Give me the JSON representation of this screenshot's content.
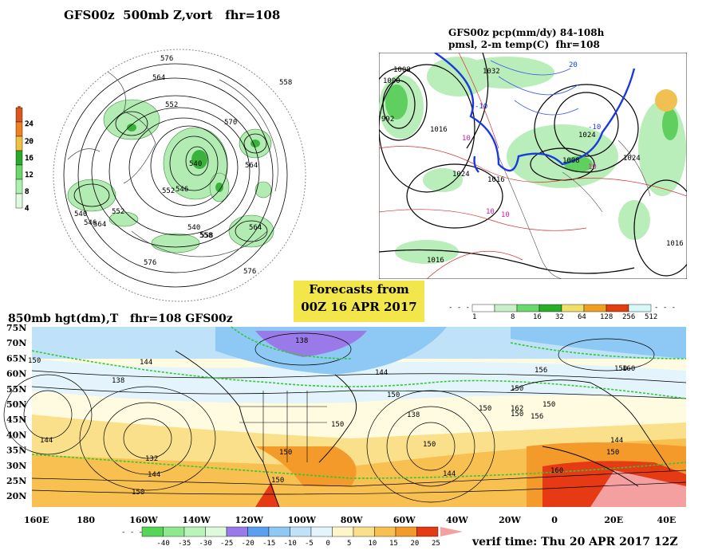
{
  "panels": {
    "upper_left": {
      "title": "GFS00z  500mb Z,vort   fhr=108",
      "contour_labels": [
        "576",
        "558",
        "564",
        "540",
        "546",
        "552",
        "564",
        "570",
        "576",
        "564",
        "540",
        "552",
        "546",
        "558",
        "564",
        "576",
        "540",
        "558",
        "552"
      ],
      "colorbar_ticks": [
        "24",
        "20",
        "16",
        "12",
        "8",
        "4"
      ]
    },
    "upper_right": {
      "title_line1": "GFS00z pcp(mm/dy) 84-108h",
      "title_line2": "pmsl, 2-m temp(C)  fhr=108",
      "isobar_labels": [
        "1008",
        "1000",
        "992",
        "1016",
        "1024",
        "1016",
        "1008",
        "1024",
        "1016",
        "1016",
        "1032",
        "1024"
      ],
      "temp_labels": [
        "-10",
        "-10",
        "10",
        "10",
        "10",
        "20",
        "10"
      ],
      "colorbar_ticks": [
        "1",
        "8",
        "16",
        "32",
        "64",
        "128",
        "256",
        "512"
      ]
    },
    "lower": {
      "title": "850mb hgt(dm),T   fhr=108 GFS00z",
      "lat_labels": [
        "75N",
        "70N",
        "65N",
        "60N",
        "55N",
        "50N",
        "45N",
        "40N",
        "35N",
        "30N",
        "25N",
        "20N"
      ],
      "lon_labels": [
        "160E",
        "180",
        "160W",
        "140W",
        "120W",
        "100W",
        "80W",
        "60W",
        "40W",
        "20W",
        "0",
        "20E",
        "40E"
      ],
      "height_labels": [
        "138",
        "150",
        "144",
        "138",
        "150",
        "144",
        "150",
        "138",
        "150",
        "132",
        "144",
        "150",
        "150",
        "150",
        "144",
        "156",
        "150",
        "150",
        "150",
        "162",
        "156",
        "144",
        "150",
        "160",
        "150",
        "160",
        "144",
        "150"
      ],
      "colorbar_ticks": [
        "-40",
        "-35",
        "-30",
        "-25",
        "-20",
        "-15",
        "-10",
        "-5",
        "0",
        "5",
        "10",
        "15",
        "20",
        "25"
      ]
    }
  },
  "forecast_box": {
    "line1": "Forecasts from",
    "line2": "00Z 16 APR 2017"
  },
  "verif_time": "verif time: Thu 20 APR 2017 12Z",
  "colors": {
    "lowerbar": [
      "#55d655",
      "#8ee88e",
      "#b9f4b9",
      "#ddfadd",
      "#9a7ae8",
      "#5aa0f0",
      "#8ec8f4",
      "#bfe2f8",
      "#e4f4fc",
      "#fff6c8",
      "#fae08a",
      "#f8c050",
      "#f49a2a",
      "#e63a14",
      "#f5a0a0"
    ],
    "pcpbar": [
      "#ffffff",
      "#c8f0c8",
      "#6ad86a",
      "#2aae2a",
      "#f0e06a",
      "#f0a020",
      "#e04010",
      "#d8f8f8"
    ],
    "vortbar": [
      "#d85820",
      "#f08020",
      "#f0c040",
      "#2aaa2a",
      "#6ad86a",
      "#aef0ae",
      "#e0fae0"
    ]
  }
}
